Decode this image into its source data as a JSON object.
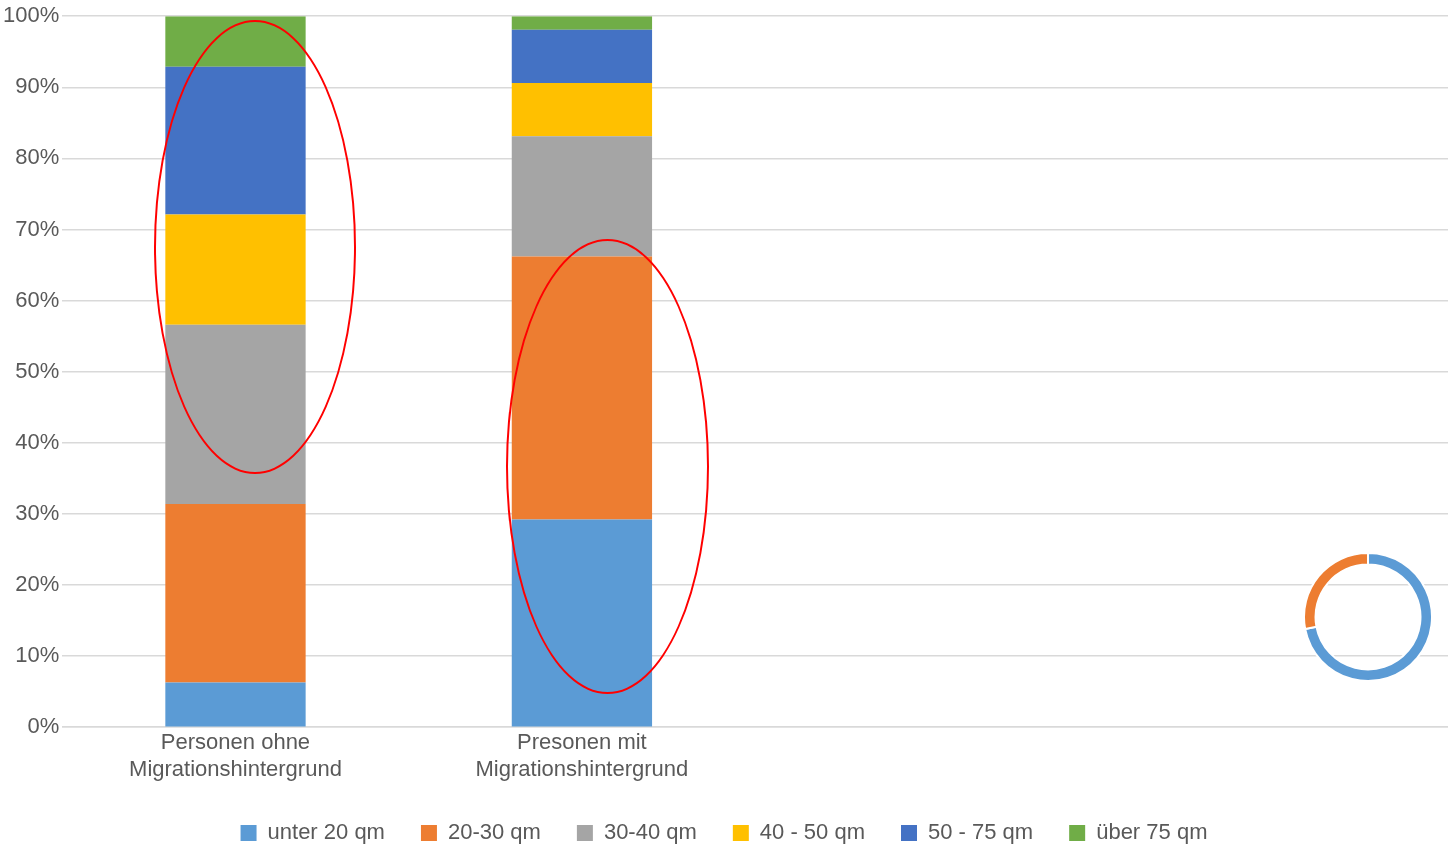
{
  "chart_data": [
    {
      "type": "bar",
      "stacked": true,
      "categories": [
        "Personen ohne Migrationshintergrund",
        "Presonen mit Migrationshintergrund",
        null,
        null
      ],
      "series": [
        {
          "name": "unter 20 qm",
          "color": "#5b9bd5",
          "values": [
            6.3,
            29.2,
            null,
            null
          ]
        },
        {
          "name": "20-30 qm",
          "color": "#ed7d31",
          "values": [
            25.1,
            37.0,
            null,
            null
          ]
        },
        {
          "name": "30-40 qm",
          "color": "#a5a5a5",
          "values": [
            25.2,
            16.9,
            null,
            null
          ]
        },
        {
          "name": "40 - 50 qm",
          "color": "#ffc000",
          "values": [
            15.5,
            7.5,
            null,
            null
          ]
        },
        {
          "name": "50 - 75 qm",
          "color": "#4472c4",
          "values": [
            20.8,
            7.5,
            null,
            null
          ]
        },
        {
          "name": "über 75 qm",
          "color": "#70ad47",
          "values": [
            7.1,
            1.9,
            null,
            null
          ]
        }
      ],
      "ylim": [
        0,
        100
      ],
      "yticks": [
        {
          "value": 0,
          "label": "0%"
        },
        {
          "value": 10,
          "label": "10%"
        },
        {
          "value": 20,
          "label": "20%"
        },
        {
          "value": 30,
          "label": "30%"
        },
        {
          "value": 40,
          "label": "40%"
        },
        {
          "value": 50,
          "label": "50%"
        },
        {
          "value": 60,
          "label": "60%"
        },
        {
          "value": 70,
          "label": "70%"
        },
        {
          "value": 80,
          "label": "80%"
        },
        {
          "value": 90,
          "label": "90%"
        },
        {
          "value": 100,
          "label": "100%"
        }
      ],
      "grid": "y",
      "legend": "bottom"
    },
    {
      "type": "donut",
      "categories": [
        null,
        null
      ],
      "values": [
        72,
        28
      ],
      "colors": [
        "#5b9bd5",
        "#ed7d31"
      ]
    }
  ]
}
